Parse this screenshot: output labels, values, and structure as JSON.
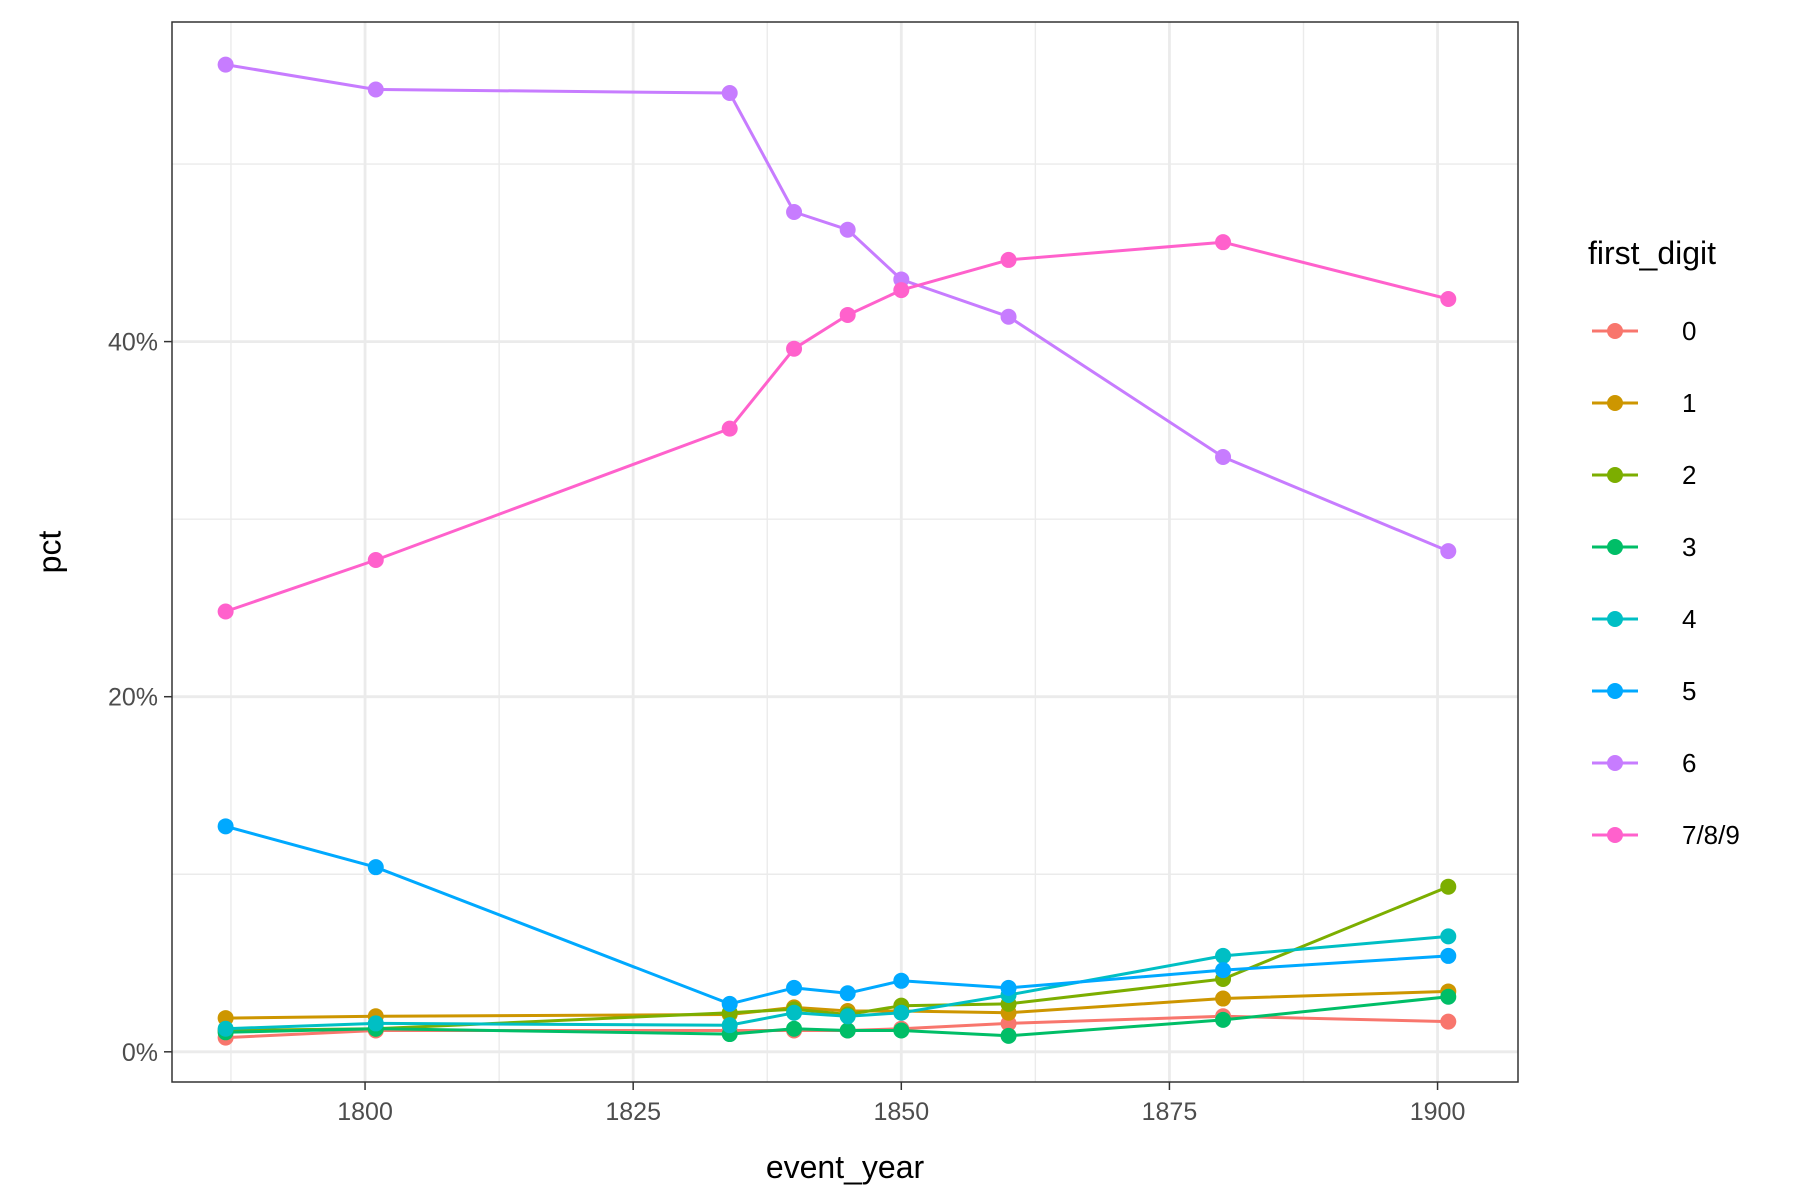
{
  "chart_data": {
    "type": "line",
    "title": "",
    "xlabel": "event_year",
    "ylabel": "pct",
    "xlim": [
      1782,
      1907.5
    ],
    "ylim": [
      -1.7,
      58
    ],
    "x_ticks": [
      1800,
      1825,
      1850,
      1875,
      1900
    ],
    "x_tick_labels": [
      "1800",
      "1825",
      "1850",
      "1875",
      "1900"
    ],
    "y_ticks": [
      0,
      20,
      40
    ],
    "y_tick_labels": [
      "0%",
      "20%",
      "40%"
    ],
    "grid": true,
    "legend_title": "first_digit",
    "legend_position": "right",
    "x": [
      1787,
      1801,
      1834,
      1840,
      1845,
      1850,
      1860,
      1880,
      1901
    ],
    "series": [
      {
        "name": "0",
        "color": "#F8766D",
        "values": [
          0.8,
          1.2,
          1.2,
          1.2,
          1.2,
          1.3,
          1.6,
          2.0,
          1.7
        ]
      },
      {
        "name": "1",
        "color": "#CD9600",
        "values": [
          1.9,
          2.0,
          2.1,
          2.5,
          2.3,
          2.3,
          2.2,
          3.0,
          3.4
        ]
      },
      {
        "name": "2",
        "color": "#7CAE00",
        "values": [
          1.2,
          1.3,
          2.2,
          2.4,
          2.1,
          2.6,
          2.7,
          4.1,
          9.3
        ]
      },
      {
        "name": "3",
        "color": "#00BE67",
        "values": [
          1.1,
          1.3,
          1.0,
          1.3,
          1.2,
          1.2,
          0.9,
          1.8,
          3.1
        ]
      },
      {
        "name": "4",
        "color": "#00BFC4",
        "values": [
          1.3,
          1.6,
          1.5,
          2.2,
          2.0,
          2.2,
          3.2,
          5.4,
          6.5
        ]
      },
      {
        "name": "5",
        "color": "#00A9FF",
        "values": [
          12.7,
          10.4,
          2.7,
          3.6,
          3.3,
          4.0,
          3.6,
          4.6,
          5.4
        ]
      },
      {
        "name": "6",
        "color": "#C77CFF",
        "values": [
          55.6,
          54.2,
          54.0,
          47.3,
          46.3,
          43.5,
          41.4,
          33.5,
          28.2
        ]
      },
      {
        "name": "7/8/9",
        "color": "#FF61CC",
        "values": [
          24.8,
          27.7,
          35.1,
          39.6,
          41.5,
          42.9,
          44.6,
          45.6,
          42.4
        ]
      }
    ]
  }
}
